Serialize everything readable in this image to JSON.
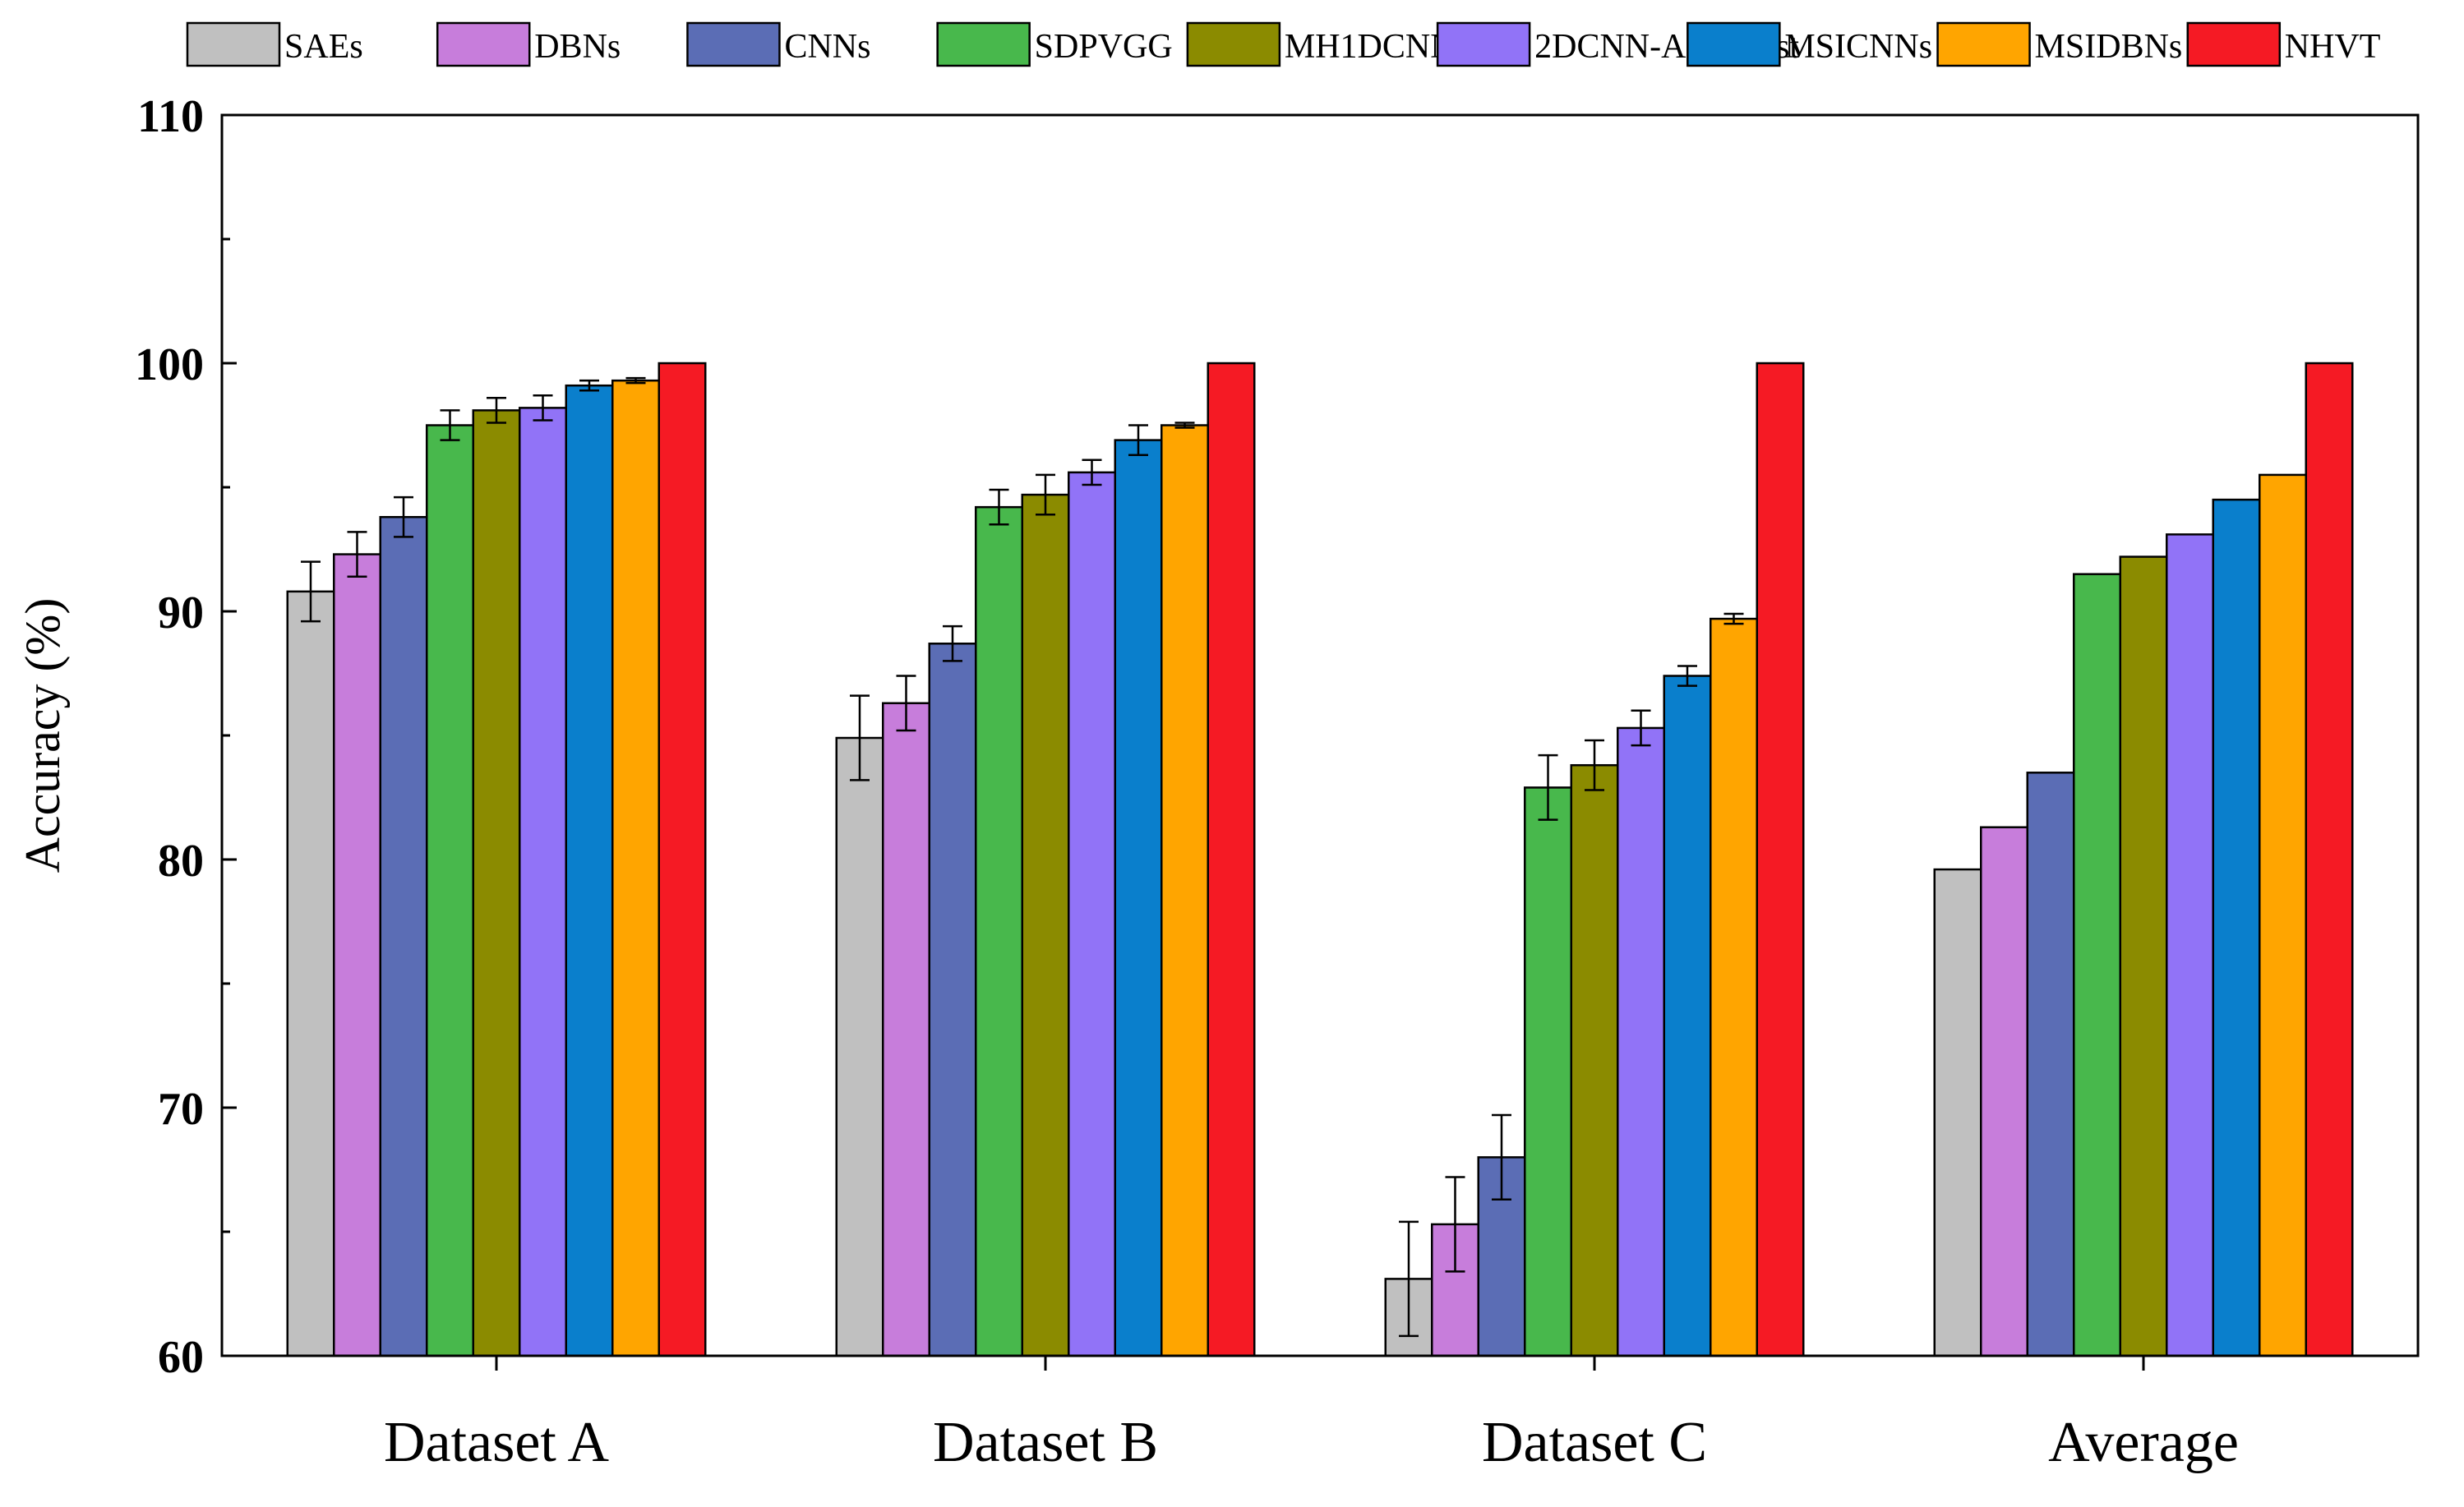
{
  "chart_data": {
    "type": "bar",
    "title": "",
    "xlabel": "",
    "ylabel": "Accuracy (%)",
    "ylim": [
      60,
      110
    ],
    "yticks": [
      60,
      70,
      80,
      90,
      100,
      110
    ],
    "grid": false,
    "legend_position": "top",
    "categories": [
      "Dataset A",
      "Dataset B",
      "Dataset C",
      "Average"
    ],
    "series": [
      {
        "name": "SAEs",
        "color": "#c0c0c0",
        "values": [
          90.8,
          84.9,
          63.1,
          79.6
        ],
        "errors": [
          1.2,
          1.7,
          2.3,
          0
        ]
      },
      {
        "name": "DBNs",
        "color": "#c77ddb",
        "values": [
          92.3,
          86.3,
          65.3,
          81.3
        ],
        "errors": [
          0.9,
          1.1,
          1.9,
          0
        ]
      },
      {
        "name": "CNNs",
        "color": "#5b6db5",
        "values": [
          93.8,
          88.7,
          68.0,
          83.5
        ],
        "errors": [
          0.8,
          0.7,
          1.7,
          0
        ]
      },
      {
        "name": "SDPVGG",
        "color": "#48b84c",
        "values": [
          97.5,
          94.2,
          82.9,
          91.5
        ],
        "errors": [
          0.6,
          0.7,
          1.3,
          0
        ]
      },
      {
        "name": "MH1DCNNs",
        "color": "#8b8b00",
        "values": [
          98.1,
          94.7,
          83.8,
          92.2
        ],
        "errors": [
          0.5,
          0.8,
          1.0,
          0
        ]
      },
      {
        "name": "2DCNN-AdaBoost",
        "color": "#9173f7",
        "values": [
          98.2,
          95.6,
          85.3,
          93.1
        ],
        "errors": [
          0.5,
          0.5,
          0.7,
          0
        ]
      },
      {
        "name": "MSICNNs",
        "color": "#0a7fcc",
        "values": [
          99.1,
          96.9,
          87.4,
          94.5
        ],
        "errors": [
          0.2,
          0.6,
          0.4,
          0
        ]
      },
      {
        "name": "MSIDBNs",
        "color": "#ffa500",
        "values": [
          99.3,
          97.5,
          89.7,
          95.5
        ],
        "errors": [
          0.1,
          0.1,
          0.2,
          0
        ]
      },
      {
        "name": "NHVT",
        "color": "#f51a24",
        "values": [
          100,
          100,
          100,
          100
        ],
        "errors": [
          0,
          0,
          0,
          0
        ]
      }
    ]
  }
}
